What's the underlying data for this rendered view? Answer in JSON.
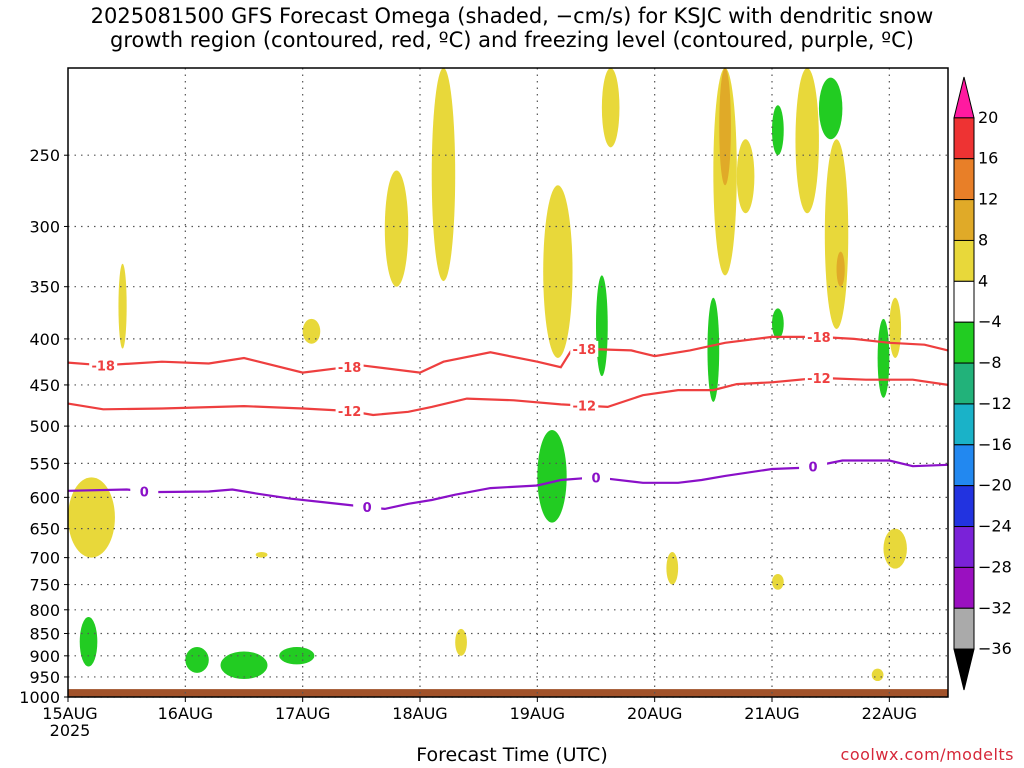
{
  "title_lines": [
    "2025081500 GFS Forecast Omega (shaded, −cm/s) for KSJC with dendritic snow",
    "growth region (contoured, red, ºC) and freezing level (contoured, purple, ºC)"
  ],
  "credit": "coolwx.com/modelts",
  "colors": {
    "ascent_weak": "#e8d83a",
    "ascent_mid": "#e0aa28",
    "descent_weak": "#22cc22",
    "dgz_contour": "#ee3f3f",
    "freezing_contour": "#8a10c8",
    "ground": "#a1522a",
    "grid": "#555555"
  },
  "chart_data": {
    "type": "heatmap",
    "title": "2025081500 GFS Forecast Omega (shaded, −cm/s) for KSJC with dendritic snow growth region (contoured, red, ºC) and freezing level (contoured, purple, ºC)",
    "xlabel": "Forecast Time (UTC)",
    "ylabel": "",
    "x_ticks": [
      "15AUG\n2025",
      "16AUG",
      "17AUG",
      "18AUG",
      "19AUG",
      "20AUG",
      "21AUG",
      "22AUG"
    ],
    "x_range_days": [
      0,
      7.5
    ],
    "y_ticks": [
      250,
      300,
      350,
      400,
      450,
      500,
      550,
      600,
      650,
      700,
      750,
      800,
      850,
      900,
      950,
      1000
    ],
    "y_range_hpa": [
      200,
      1000
    ],
    "grid": true,
    "colorbar": {
      "labels": [
        20,
        16,
        12,
        8,
        4,
        -4,
        -8,
        -12,
        -16,
        -20,
        -24,
        -28,
        -32,
        -36
      ],
      "colors": [
        "#ff1aa0",
        "#ee3333",
        "#e87f28",
        "#e0aa28",
        "#e8d83a",
        "#ffffff",
        "#22cc22",
        "#22b27a",
        "#1ab2c8",
        "#2288f0",
        "#2233e0",
        "#7a22d8",
        "#9a10c0",
        "#aaaaaa",
        "#000000"
      ]
    },
    "contours": [
      {
        "label": "-18",
        "color": "#ee3f3f",
        "points": [
          [
            0.0,
            425
          ],
          [
            0.3,
            428
          ],
          [
            0.8,
            424
          ],
          [
            1.2,
            426
          ],
          [
            1.5,
            420
          ],
          [
            2.0,
            436
          ],
          [
            2.5,
            428
          ],
          [
            3.0,
            436
          ],
          [
            3.2,
            424
          ],
          [
            3.6,
            414
          ],
          [
            4.0,
            424
          ],
          [
            4.2,
            430
          ],
          [
            4.3,
            410
          ],
          [
            4.8,
            412
          ],
          [
            5.0,
            418
          ],
          [
            5.3,
            412
          ],
          [
            5.6,
            404
          ],
          [
            6.0,
            398
          ],
          [
            6.4,
            398
          ],
          [
            6.7,
            400
          ],
          [
            7.0,
            404
          ],
          [
            7.3,
            406
          ],
          [
            7.5,
            412
          ]
        ],
        "label_positions": [
          0.3,
          2.4,
          4.4,
          6.4
        ]
      },
      {
        "label": "-12",
        "color": "#ee3f3f",
        "points": [
          [
            0.0,
            472
          ],
          [
            0.3,
            479
          ],
          [
            0.8,
            478
          ],
          [
            1.5,
            475
          ],
          [
            2.0,
            478
          ],
          [
            2.4,
            481
          ],
          [
            2.6,
            486
          ],
          [
            2.9,
            482
          ],
          [
            3.1,
            476
          ],
          [
            3.4,
            466
          ],
          [
            3.8,
            468
          ],
          [
            4.2,
            473
          ],
          [
            4.6,
            476
          ],
          [
            4.9,
            462
          ],
          [
            5.2,
            456
          ],
          [
            5.5,
            456
          ],
          [
            5.7,
            449
          ],
          [
            6.0,
            447
          ],
          [
            6.4,
            442
          ],
          [
            6.8,
            444
          ],
          [
            7.2,
            444
          ],
          [
            7.5,
            450
          ]
        ],
        "label_positions": [
          2.4,
          4.4,
          6.4
        ]
      },
      {
        "label": "0",
        "color": "#8a10c8",
        "points": [
          [
            0.0,
            590
          ],
          [
            0.5,
            588
          ],
          [
            0.7,
            592
          ],
          [
            1.2,
            591
          ],
          [
            1.4,
            588
          ],
          [
            1.6,
            594
          ],
          [
            1.9,
            602
          ],
          [
            2.2,
            608
          ],
          [
            2.5,
            614
          ],
          [
            2.7,
            618
          ],
          [
            2.9,
            610
          ],
          [
            3.1,
            604
          ],
          [
            3.3,
            596
          ],
          [
            3.6,
            586
          ],
          [
            4.0,
            582
          ],
          [
            4.2,
            574
          ],
          [
            4.5,
            570
          ],
          [
            4.9,
            578
          ],
          [
            5.2,
            578
          ],
          [
            5.4,
            574
          ],
          [
            5.6,
            568
          ],
          [
            6.0,
            558
          ],
          [
            6.3,
            556
          ],
          [
            6.6,
            546
          ],
          [
            7.0,
            546
          ],
          [
            7.2,
            554
          ],
          [
            7.5,
            552
          ]
        ],
        "label_positions": [
          0.65,
          2.55,
          4.5,
          6.35
        ]
      }
    ],
    "omega_shading": [
      {
        "value_cms": 4,
        "t": [
          0.0,
          0.4
        ],
        "p": [
          570,
          700
        ]
      },
      {
        "value_cms": 4,
        "t": [
          0.43,
          0.5
        ],
        "p": [
          330,
          410
        ]
      },
      {
        "value_cms": -4,
        "t": [
          0.1,
          0.25
        ],
        "p": [
          815,
          925
        ]
      },
      {
        "value_cms": -4,
        "t": [
          1.0,
          1.2
        ],
        "p": [
          880,
          940
        ]
      },
      {
        "value_cms": -4,
        "t": [
          1.3,
          1.7
        ],
        "p": [
          890,
          955
        ]
      },
      {
        "value_cms": -4,
        "t": [
          1.8,
          2.1
        ],
        "p": [
          880,
          920
        ]
      },
      {
        "value_cms": 4,
        "t": [
          1.6,
          1.7
        ],
        "p": [
          690,
          700
        ]
      },
      {
        "value_cms": 4,
        "t": [
          2.0,
          2.15
        ],
        "p": [
          380,
          405
        ]
      },
      {
        "value_cms": 4,
        "t": [
          2.7,
          2.9
        ],
        "p": [
          260,
          350
        ]
      },
      {
        "value_cms": 4,
        "t": [
          3.1,
          3.3
        ],
        "p": [
          200,
          345
        ]
      },
      {
        "value_cms": 4,
        "t": [
          3.3,
          3.4
        ],
        "p": [
          840,
          900
        ]
      },
      {
        "value_cms": -4,
        "t": [
          4.0,
          4.25
        ],
        "p": [
          505,
          640
        ]
      },
      {
        "value_cms": 4,
        "t": [
          4.05,
          4.3
        ],
        "p": [
          270,
          420
        ]
      },
      {
        "value_cms": 4,
        "t": [
          4.55,
          4.7
        ],
        "p": [
          200,
          245
        ]
      },
      {
        "value_cms": -4,
        "t": [
          4.5,
          4.6
        ],
        "p": [
          340,
          440
        ]
      },
      {
        "value_cms": 4,
        "t": [
          5.1,
          5.2
        ],
        "p": [
          690,
          750
        ]
      },
      {
        "value_cms": -4,
        "t": [
          5.45,
          5.55
        ],
        "p": [
          360,
          470
        ]
      },
      {
        "value_cms": 4,
        "t": [
          5.5,
          5.7
        ],
        "p": [
          200,
          340
        ]
      },
      {
        "value_cms": 8,
        "t": [
          5.55,
          5.65
        ],
        "p": [
          200,
          270
        ]
      },
      {
        "value_cms": 4,
        "t": [
          5.7,
          5.85
        ],
        "p": [
          240,
          290
        ]
      },
      {
        "value_cms": -4,
        "t": [
          6.0,
          6.1
        ],
        "p": [
          220,
          250
        ]
      },
      {
        "value_cms": -4,
        "t": [
          6.0,
          6.1
        ],
        "p": [
          370,
          400
        ]
      },
      {
        "value_cms": 4,
        "t": [
          6.2,
          6.4
        ],
        "p": [
          200,
          290
        ]
      },
      {
        "value_cms": -4,
        "t": [
          6.4,
          6.6
        ],
        "p": [
          205,
          240
        ]
      },
      {
        "value_cms": 4,
        "t": [
          6.45,
          6.65
        ],
        "p": [
          240,
          390
        ]
      },
      {
        "value_cms": 8,
        "t": [
          6.55,
          6.62
        ],
        "p": [
          320,
          350
        ]
      },
      {
        "value_cms": -4,
        "t": [
          6.9,
          7.0
        ],
        "p": [
          380,
          465
        ]
      },
      {
        "value_cms": 4,
        "t": [
          7.0,
          7.1
        ],
        "p": [
          360,
          420
        ]
      },
      {
        "value_cms": 4,
        "t": [
          6.95,
          7.15
        ],
        "p": [
          650,
          720
        ]
      },
      {
        "value_cms": 4,
        "t": [
          6.0,
          6.1
        ],
        "p": [
          730,
          760
        ]
      },
      {
        "value_cms": 4,
        "t": [
          6.85,
          6.95
        ],
        "p": [
          930,
          960
        ]
      }
    ],
    "ground_p": 980
  }
}
